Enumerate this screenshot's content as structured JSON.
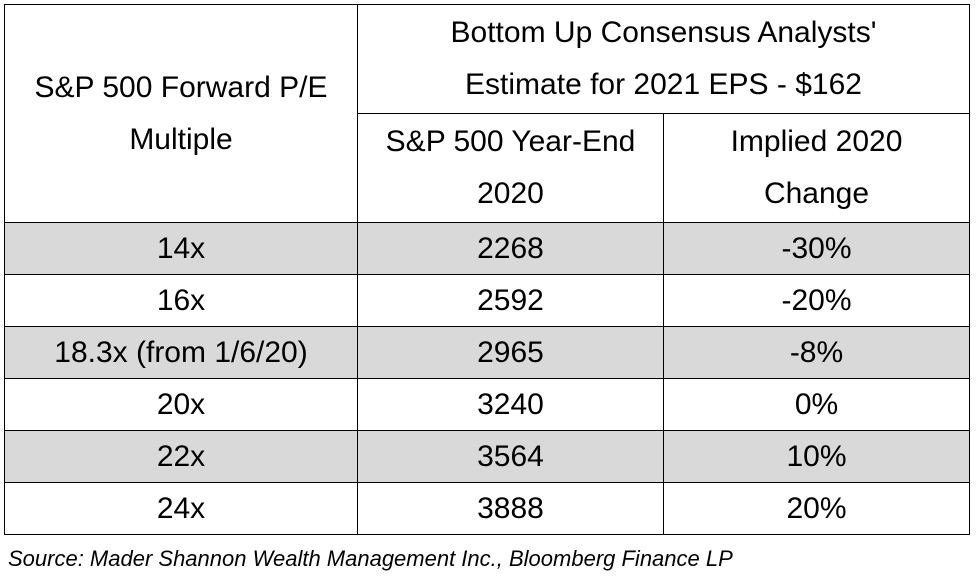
{
  "chart_data": {
    "type": "table",
    "header": {
      "col1": [
        "S&P 500 Forward P/E",
        "Multiple"
      ],
      "group": [
        "Bottom Up Consensus Analysts'",
        "Estimate for 2021 EPS - $162"
      ],
      "col2": [
        "S&P 500 Year-End",
        "2020"
      ],
      "col3": [
        "Implied 2020",
        "Change"
      ]
    },
    "rows": [
      {
        "multiple": "14x",
        "year_end": "2268",
        "change": "-30%",
        "shaded": true
      },
      {
        "multiple": "16x",
        "year_end": "2592",
        "change": "-20%",
        "shaded": false
      },
      {
        "multiple": "18.3x (from 1/6/20)",
        "year_end": "2965",
        "change": "-8%",
        "shaded": true
      },
      {
        "multiple": "20x",
        "year_end": "3240",
        "change": "0%",
        "shaded": false
      },
      {
        "multiple": "22x",
        "year_end": "3564",
        "change": "10%",
        "shaded": true
      },
      {
        "multiple": "24x",
        "year_end": "3888",
        "change": "20%",
        "shaded": false
      }
    ],
    "colors": {
      "shaded_row": "#d9d9d9",
      "border": "#000000"
    }
  },
  "source": "Source: Mader Shannon Wealth Management Inc., Bloomberg Finance LP"
}
